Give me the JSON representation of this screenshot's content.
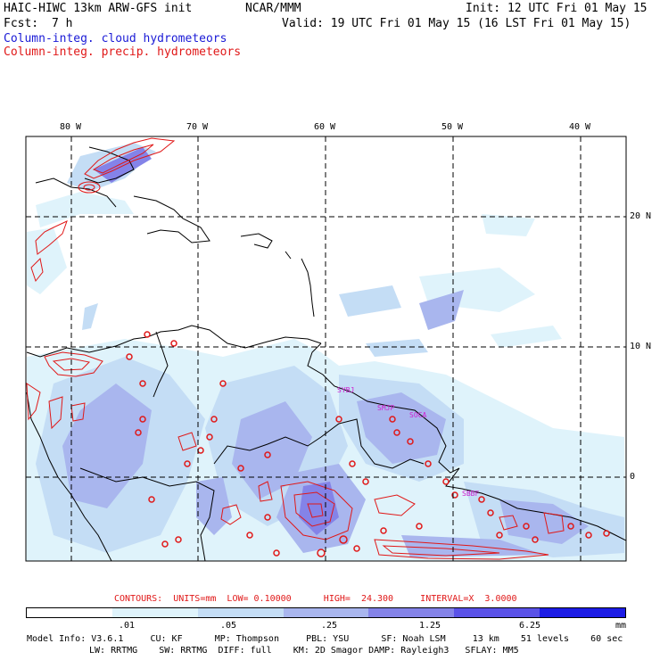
{
  "header": {
    "title": "HAIC-HIWC 13km ARW-GFS init",
    "org": "NCAR/MMM",
    "init": "Init: 12 UTC Fri 01 May 15",
    "fcst_label": "Fcst:",
    "fcst_value": "7 h",
    "valid": "Valid: 19 UTC Fri 01 May 15 (16 LST Fri 01 May 15)",
    "field1": "Column-integ. cloud hydrometeors",
    "field2": "Column-integ. precip. hydrometeors"
  },
  "map": {
    "lon_labels": [
      "80 W",
      "70 W",
      "60 W",
      "50 W",
      "40 W"
    ],
    "lat_labels": [
      "20 N",
      "10 N",
      "0"
    ],
    "stations": [
      "SYBJ",
      "SMJP",
      "SOCA",
      "SBBF"
    ],
    "colors": {
      "cloud_levels": [
        "#ffffff",
        "#dff3fb",
        "#c4ddf5",
        "#a9b6ee",
        "#8483e8",
        "#5a52e8",
        "#1c1ce6"
      ],
      "precip_contour": "#e01818",
      "coast": "#000000",
      "grid": "#000000"
    }
  },
  "legend": {
    "contours_text": "CONTOURS:  UNITS=mm  LOW= 0.10000      HIGH=  24.300     INTERVAL=X  3.0000",
    "ticks": [
      ".01",
      ".05",
      ".25",
      "1.25",
      "6.25"
    ],
    "units": "mm"
  },
  "model_info": {
    "line1": "Model Info: V3.6.1     CU: KF      MP: Thompson     PBL: YSU      SF: Noah LSM     13 km    51 levels    60 sec",
    "line2": "LW: RRTMG    SW: RRTMG  DIFF: full    KM: 2D Smagor DAMP: Rayleigh3   SFLAY: MM5"
  }
}
